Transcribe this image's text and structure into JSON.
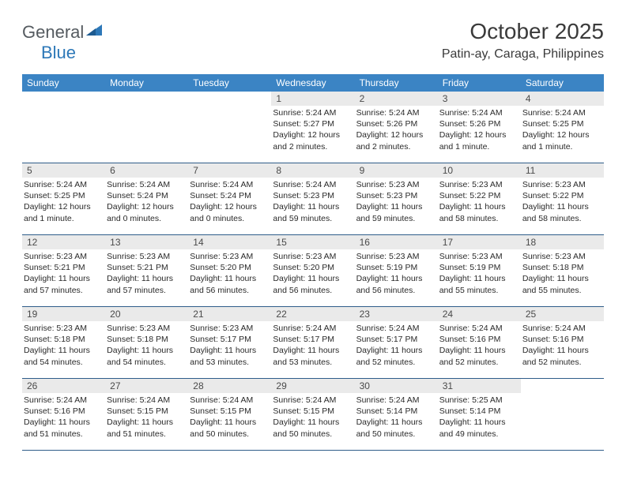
{
  "brand": {
    "text1": "General",
    "text2": "Blue"
  },
  "title": "October 2025",
  "location": "Patin-ay, Caraga, Philippines",
  "colors": {
    "header_bg": "#3b84c4",
    "header_text": "#ffffff",
    "daynum_bg": "#eaeaea",
    "border": "#2f5d8a",
    "brand_gray": "#555b60",
    "brand_blue": "#2d78b8"
  },
  "dayNames": [
    "Sunday",
    "Monday",
    "Tuesday",
    "Wednesday",
    "Thursday",
    "Friday",
    "Saturday"
  ],
  "weeks": [
    [
      null,
      null,
      null,
      {
        "n": "1",
        "sr": "5:24 AM",
        "ss": "5:27 PM",
        "dl": "12 hours and 2 minutes."
      },
      {
        "n": "2",
        "sr": "5:24 AM",
        "ss": "5:26 PM",
        "dl": "12 hours and 2 minutes."
      },
      {
        "n": "3",
        "sr": "5:24 AM",
        "ss": "5:26 PM",
        "dl": "12 hours and 1 minute."
      },
      {
        "n": "4",
        "sr": "5:24 AM",
        "ss": "5:25 PM",
        "dl": "12 hours and 1 minute."
      }
    ],
    [
      {
        "n": "5",
        "sr": "5:24 AM",
        "ss": "5:25 PM",
        "dl": "12 hours and 1 minute."
      },
      {
        "n": "6",
        "sr": "5:24 AM",
        "ss": "5:24 PM",
        "dl": "12 hours and 0 minutes."
      },
      {
        "n": "7",
        "sr": "5:24 AM",
        "ss": "5:24 PM",
        "dl": "12 hours and 0 minutes."
      },
      {
        "n": "8",
        "sr": "5:24 AM",
        "ss": "5:23 PM",
        "dl": "11 hours and 59 minutes."
      },
      {
        "n": "9",
        "sr": "5:23 AM",
        "ss": "5:23 PM",
        "dl": "11 hours and 59 minutes."
      },
      {
        "n": "10",
        "sr": "5:23 AM",
        "ss": "5:22 PM",
        "dl": "11 hours and 58 minutes."
      },
      {
        "n": "11",
        "sr": "5:23 AM",
        "ss": "5:22 PM",
        "dl": "11 hours and 58 minutes."
      }
    ],
    [
      {
        "n": "12",
        "sr": "5:23 AM",
        "ss": "5:21 PM",
        "dl": "11 hours and 57 minutes."
      },
      {
        "n": "13",
        "sr": "5:23 AM",
        "ss": "5:21 PM",
        "dl": "11 hours and 57 minutes."
      },
      {
        "n": "14",
        "sr": "5:23 AM",
        "ss": "5:20 PM",
        "dl": "11 hours and 56 minutes."
      },
      {
        "n": "15",
        "sr": "5:23 AM",
        "ss": "5:20 PM",
        "dl": "11 hours and 56 minutes."
      },
      {
        "n": "16",
        "sr": "5:23 AM",
        "ss": "5:19 PM",
        "dl": "11 hours and 56 minutes."
      },
      {
        "n": "17",
        "sr": "5:23 AM",
        "ss": "5:19 PM",
        "dl": "11 hours and 55 minutes."
      },
      {
        "n": "18",
        "sr": "5:23 AM",
        "ss": "5:18 PM",
        "dl": "11 hours and 55 minutes."
      }
    ],
    [
      {
        "n": "19",
        "sr": "5:23 AM",
        "ss": "5:18 PM",
        "dl": "11 hours and 54 minutes."
      },
      {
        "n": "20",
        "sr": "5:23 AM",
        "ss": "5:18 PM",
        "dl": "11 hours and 54 minutes."
      },
      {
        "n": "21",
        "sr": "5:23 AM",
        "ss": "5:17 PM",
        "dl": "11 hours and 53 minutes."
      },
      {
        "n": "22",
        "sr": "5:24 AM",
        "ss": "5:17 PM",
        "dl": "11 hours and 53 minutes."
      },
      {
        "n": "23",
        "sr": "5:24 AM",
        "ss": "5:17 PM",
        "dl": "11 hours and 52 minutes."
      },
      {
        "n": "24",
        "sr": "5:24 AM",
        "ss": "5:16 PM",
        "dl": "11 hours and 52 minutes."
      },
      {
        "n": "25",
        "sr": "5:24 AM",
        "ss": "5:16 PM",
        "dl": "11 hours and 52 minutes."
      }
    ],
    [
      {
        "n": "26",
        "sr": "5:24 AM",
        "ss": "5:16 PM",
        "dl": "11 hours and 51 minutes."
      },
      {
        "n": "27",
        "sr": "5:24 AM",
        "ss": "5:15 PM",
        "dl": "11 hours and 51 minutes."
      },
      {
        "n": "28",
        "sr": "5:24 AM",
        "ss": "5:15 PM",
        "dl": "11 hours and 50 minutes."
      },
      {
        "n": "29",
        "sr": "5:24 AM",
        "ss": "5:15 PM",
        "dl": "11 hours and 50 minutes."
      },
      {
        "n": "30",
        "sr": "5:24 AM",
        "ss": "5:14 PM",
        "dl": "11 hours and 50 minutes."
      },
      {
        "n": "31",
        "sr": "5:25 AM",
        "ss": "5:14 PM",
        "dl": "11 hours and 49 minutes."
      },
      null
    ]
  ],
  "labels": {
    "sunrise": "Sunrise: ",
    "sunset": "Sunset: ",
    "daylight": "Daylight: "
  }
}
